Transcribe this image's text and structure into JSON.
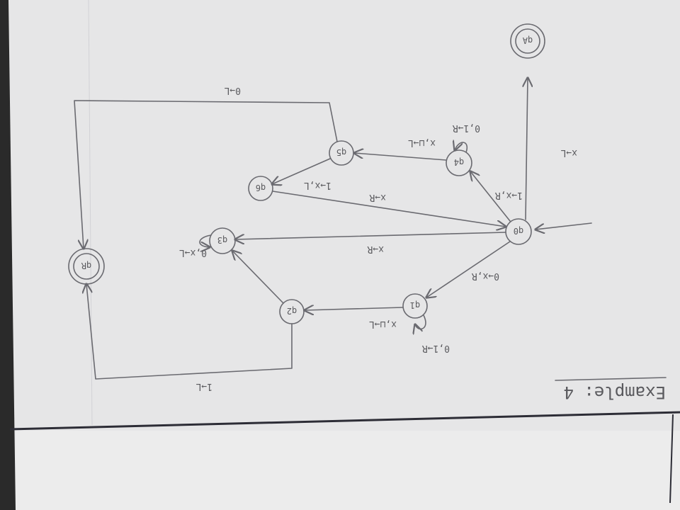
{
  "title": "Example: 4",
  "colors": {
    "paper": "#e9e9ea",
    "ink": "#6a6a70",
    "frame": "#2d2d36"
  },
  "states": {
    "q0": "q0",
    "q1": "q1",
    "q2": "q2",
    "q3": "q3",
    "q4": "q4",
    "q5": "q5",
    "q6": "q6",
    "qR": "qR",
    "qA": "qA"
  },
  "transitions": {
    "start": "",
    "q0_q1": "0→x,R",
    "q1_loop": "0,1→R",
    "q1_q2": "x,⊔→L",
    "q2_q3": "",
    "q2_qR": "1→L",
    "q3_loop": "0,x→L",
    "q3_q0": "x→R",
    "q0_q4": "1→x,R",
    "q4_loop": "0,1→R",
    "q4_q5": "x,⊔→L",
    "q5_q6": "1→x,L",
    "q6_q0": "x→R",
    "q5_qR": "0→L",
    "q0_qA": "x→L"
  }
}
